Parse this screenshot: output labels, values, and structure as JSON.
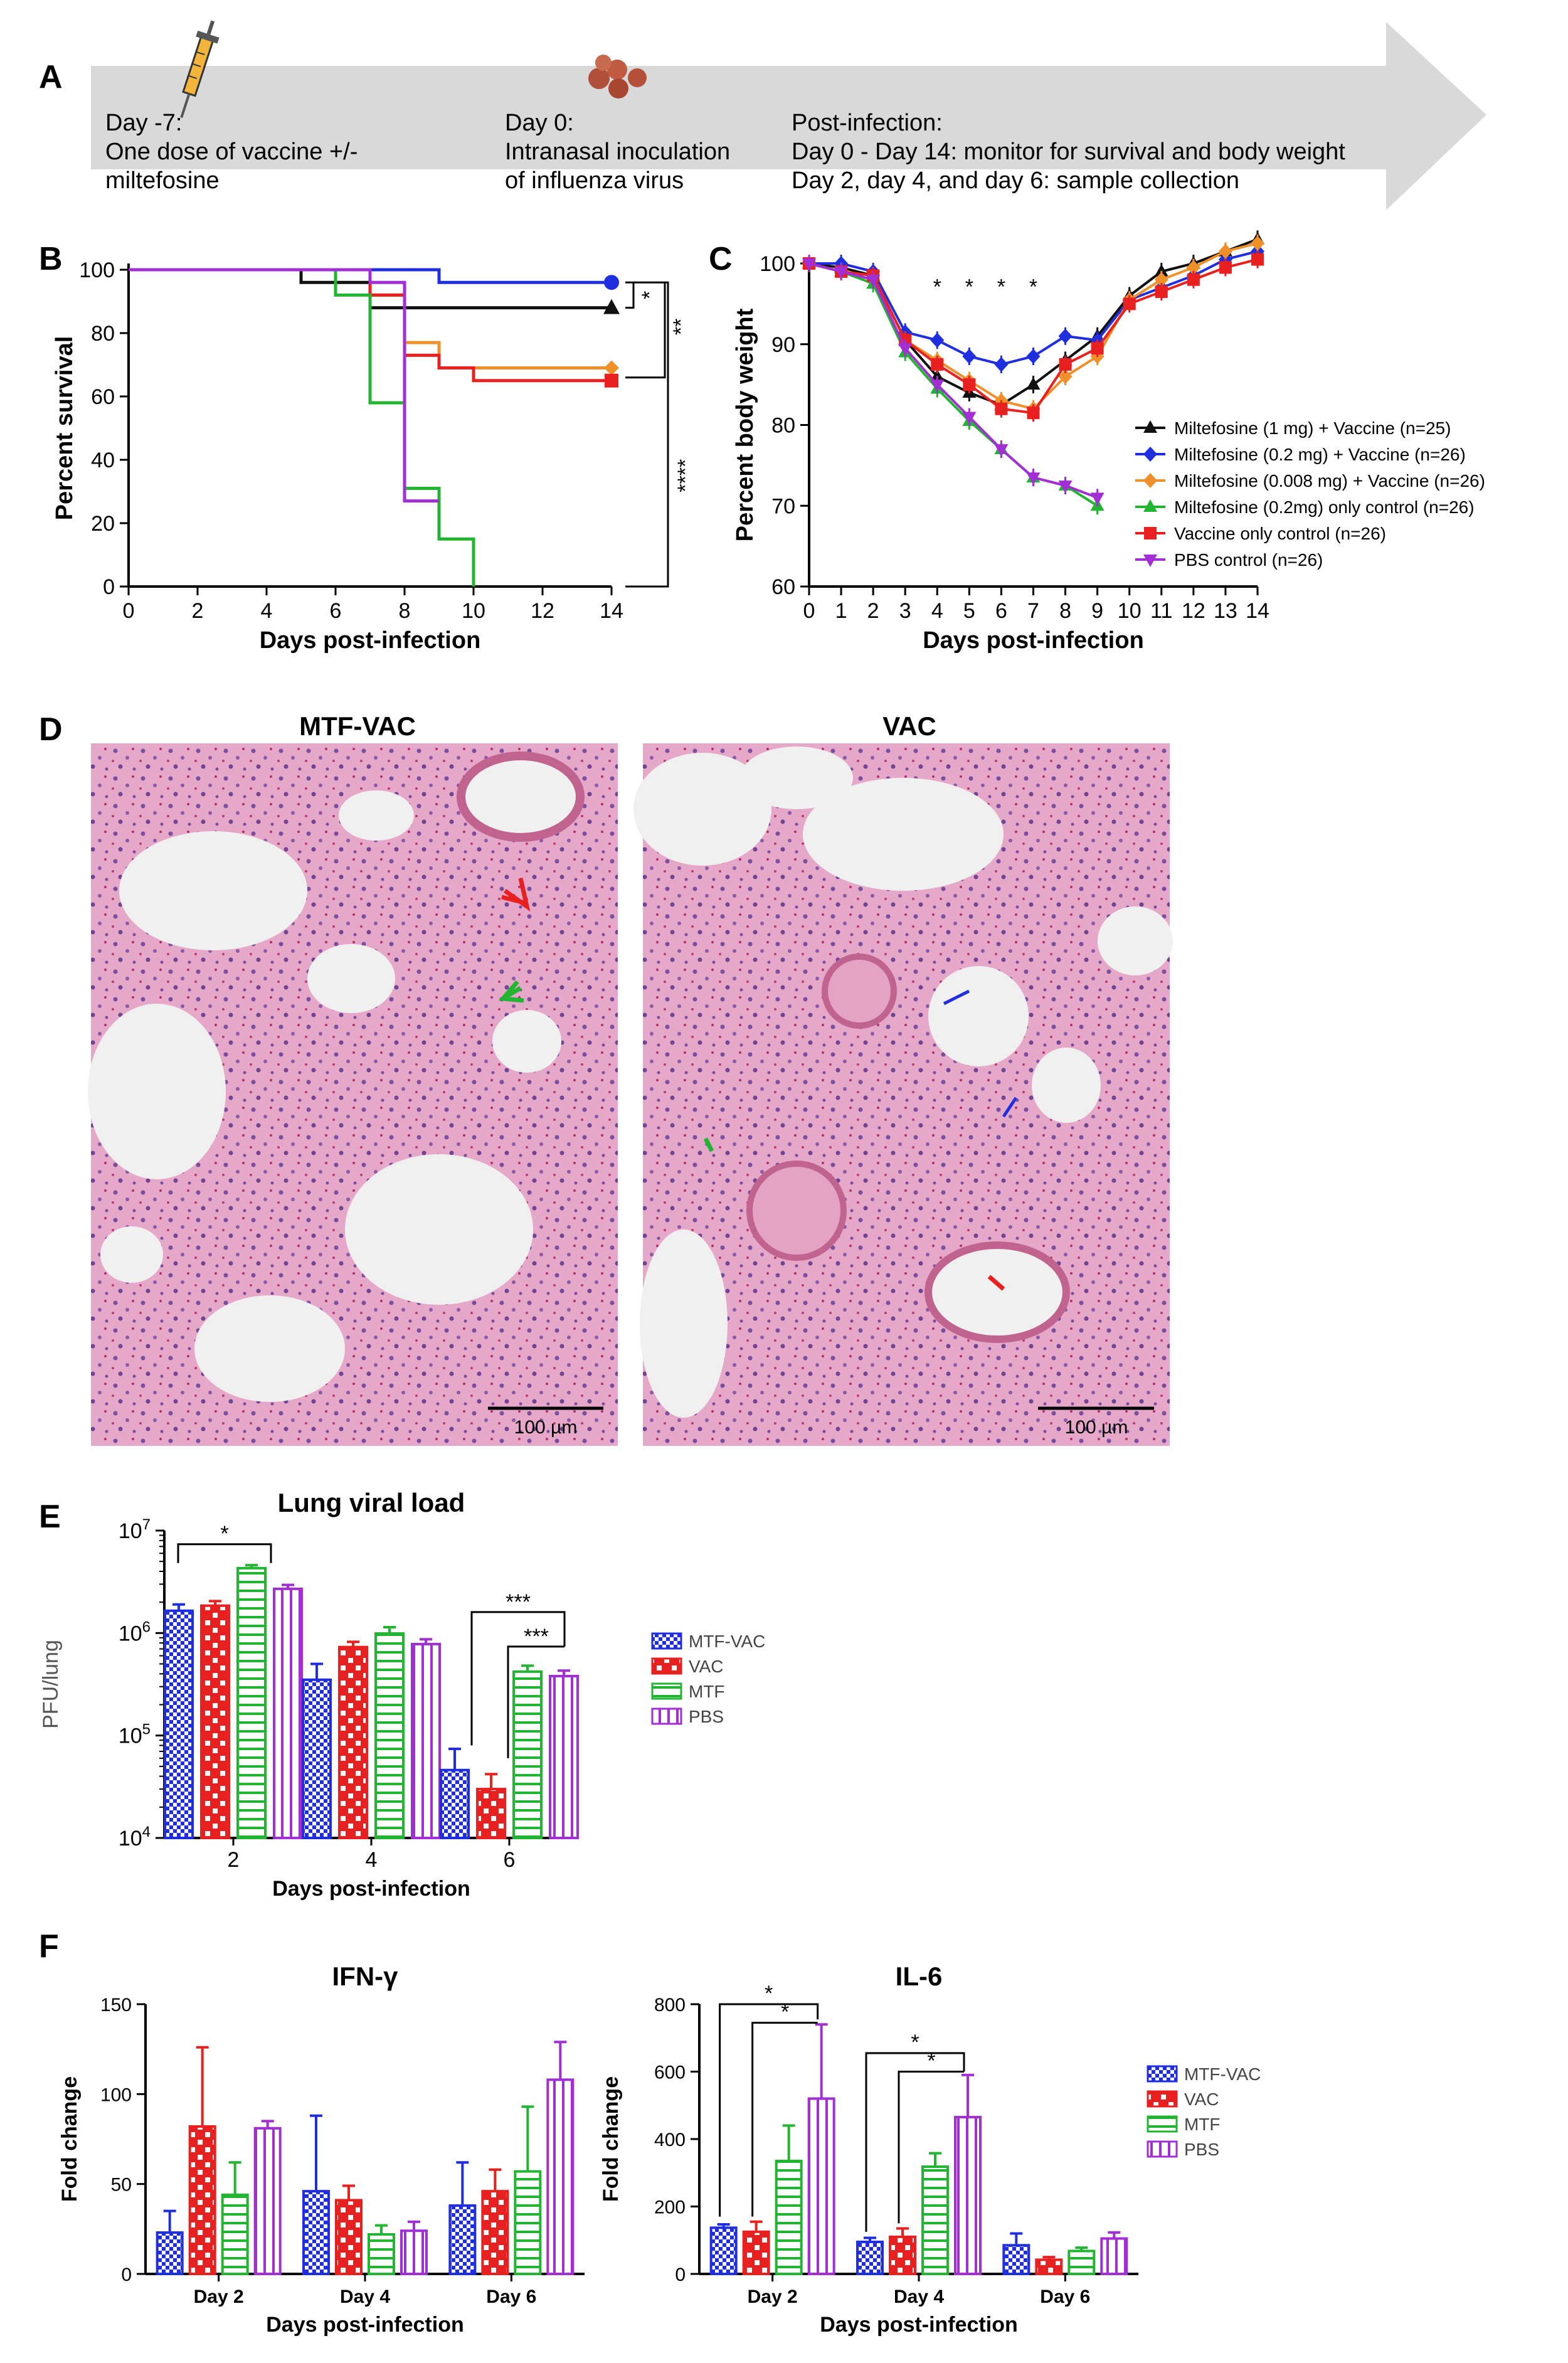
{
  "panels": {
    "A": "A",
    "B": "B",
    "C": "C",
    "D": "D",
    "E": "E",
    "F": "F"
  },
  "timeline": {
    "day_m7_title": "Day -7:",
    "day_m7_line1": "One dose of vaccine +/-",
    "day_m7_line2": "miltefosine",
    "day0_title": "Day 0:",
    "day0_line1": "Intranasal inoculation",
    "day0_line2": "of influenza virus",
    "post_title": "Post-infection:",
    "post_line1": "Day 0 - Day 14: monitor for survival and body weight",
    "post_line2": "Day 2, day 4, and day 6: sample collection"
  },
  "histology": {
    "left_title": "MTF-VAC",
    "right_title": "VAC",
    "scale_label": "100 µm"
  },
  "colors": {
    "black": "#111111",
    "blue": "#1f2fe0",
    "orange": "#f0902a",
    "green": "#22b531",
    "red": "#e8201f",
    "purple": "#a22fd3"
  },
  "chart_data": [
    {
      "panel": "B",
      "type": "line",
      "ylabel": "Percent survival",
      "xlabel": "Days post-infection",
      "xlim": [
        0,
        14
      ],
      "ylim": [
        0,
        100
      ],
      "xticks": [
        0,
        2,
        4,
        6,
        8,
        10,
        12,
        14
      ],
      "yticks": [
        0,
        20,
        40,
        60,
        80,
        100
      ],
      "series": [
        {
          "color": "#111111",
          "steps": [
            [
              0,
              100
            ],
            [
              5,
              100
            ],
            [
              5,
              96
            ],
            [
              7,
              96
            ],
            [
              7,
              88
            ],
            [
              14,
              88
            ]
          ]
        },
        {
          "color": "#1f2fe0",
          "steps": [
            [
              0,
              100
            ],
            [
              9,
              100
            ],
            [
              9,
              96
            ],
            [
              14,
              96
            ]
          ]
        },
        {
          "color": "#f0902a",
          "steps": [
            [
              0,
              100
            ],
            [
              7,
              100
            ],
            [
              7,
              92
            ],
            [
              8,
              92
            ],
            [
              8,
              77
            ],
            [
              9,
              77
            ],
            [
              9,
              69
            ],
            [
              14,
              69
            ]
          ]
        },
        {
          "color": "#e8201f",
          "steps": [
            [
              0,
              100
            ],
            [
              7,
              100
            ],
            [
              7,
              92
            ],
            [
              8,
              92
            ],
            [
              8,
              73
            ],
            [
              9,
              73
            ],
            [
              9,
              69
            ],
            [
              10,
              69
            ],
            [
              10,
              65
            ],
            [
              14,
              65
            ]
          ]
        },
        {
          "color": "#22b531",
          "steps": [
            [
              0,
              100
            ],
            [
              6,
              100
            ],
            [
              6,
              92
            ],
            [
              7,
              92
            ],
            [
              7,
              58
            ],
            [
              8,
              58
            ],
            [
              8,
              31
            ],
            [
              9,
              31
            ],
            [
              9,
              15
            ],
            [
              10,
              15
            ],
            [
              10,
              4
            ],
            [
              10,
              0
            ]
          ]
        },
        {
          "color": "#a22fd3",
          "steps": [
            [
              0,
              100
            ],
            [
              7,
              100
            ],
            [
              7,
              96
            ],
            [
              8,
              96
            ],
            [
              8,
              27
            ],
            [
              9,
              27
            ]
          ]
        }
      ],
      "significance": [
        "*",
        "**",
        "****"
      ]
    },
    {
      "panel": "C",
      "type": "line",
      "ylabel": "Percent body weight",
      "xlabel": "Days post-infection",
      "xlim": [
        0,
        14
      ],
      "ylim": [
        60,
        100
      ],
      "xticks": [
        0,
        1,
        2,
        3,
        4,
        5,
        6,
        7,
        8,
        9,
        10,
        11,
        12,
        13,
        14
      ],
      "yticks": [
        60,
        70,
        80,
        90,
        100
      ],
      "significance_days": [
        4,
        5,
        6,
        7
      ],
      "significance_label": "*",
      "series": [
        {
          "name": "Miltefosine (1 mg) + Vaccine (n=25)",
          "color": "#111111",
          "marker": "tri-up",
          "x": [
            0,
            1,
            2,
            3,
            4,
            5,
            6,
            7,
            8,
            9,
            10,
            11,
            12,
            13,
            14
          ],
          "y": [
            100,
            99.5,
            98.5,
            90.5,
            86,
            84,
            82.5,
            85,
            88,
            91,
            96,
            99,
            100,
            101.5,
            103
          ]
        },
        {
          "name": "Miltefosine (0.2 mg) + Vaccine (n=26)",
          "color": "#1f2fe0",
          "marker": "diamond",
          "x": [
            0,
            1,
            2,
            3,
            4,
            5,
            6,
            7,
            8,
            9,
            10,
            11,
            12,
            13,
            14
          ],
          "y": [
            100,
            100,
            99,
            91.5,
            90.5,
            88.5,
            87.5,
            88.5,
            91,
            90.5,
            95.5,
            97,
            98.5,
            100.5,
            101.5
          ]
        },
        {
          "name": "Miltefosine (0.008 mg) + Vaccine (n=26)",
          "color": "#f0902a",
          "marker": "diamond",
          "x": [
            0,
            1,
            2,
            3,
            4,
            5,
            6,
            7,
            8,
            9,
            10,
            11,
            12,
            13,
            14
          ],
          "y": [
            100,
            99,
            98.5,
            90.5,
            88,
            85.5,
            83,
            82,
            86,
            88.5,
            95.5,
            98,
            99.5,
            101.5,
            102.5
          ]
        },
        {
          "name": "Miltefosine (0.2mg) only control (n=26)",
          "color": "#22b531",
          "marker": "tri-up",
          "x": [
            0,
            1,
            2,
            3,
            4,
            5,
            6,
            7,
            8,
            9
          ],
          "y": [
            100,
            99,
            97.5,
            89,
            84.5,
            80.5,
            77,
            73.5,
            72.5,
            70
          ]
        },
        {
          "name": "Vaccine only control (n=26)",
          "color": "#e8201f",
          "marker": "square",
          "x": [
            0,
            1,
            2,
            3,
            4,
            5,
            6,
            7,
            8,
            9,
            10,
            11,
            12,
            13,
            14
          ],
          "y": [
            100,
            99,
            98.5,
            90.5,
            87.5,
            85,
            82,
            81.5,
            87.5,
            89.5,
            95,
            96.5,
            98,
            99.5,
            100.5
          ]
        },
        {
          "name": "PBS control (n=26)",
          "color": "#a22fd3",
          "marker": "tri-down",
          "x": [
            0,
            1,
            2,
            3,
            4,
            5,
            6,
            7,
            8,
            9
          ],
          "y": [
            100,
            99,
            98,
            89.5,
            85,
            81,
            77,
            73.5,
            72.5,
            71
          ]
        }
      ]
    },
    {
      "panel": "E",
      "type": "bar",
      "title": "Lung viral load",
      "ylabel": "PFU/lung",
      "xlabel": "Days post-infection",
      "yscale": "log",
      "ylim": [
        10000,
        10000000
      ],
      "categories": [
        "2",
        "4",
        "6"
      ],
      "series": [
        {
          "name": "MTF-VAC",
          "color": "#1f2fe0",
          "values": [
            1650000,
            350000,
            46000
          ],
          "errors": [
            250000,
            150000,
            28000
          ]
        },
        {
          "name": "VAC",
          "color": "#e8201f",
          "values": [
            1850000,
            730000,
            30000
          ],
          "errors": [
            200000,
            90000,
            12000
          ]
        },
        {
          "name": "MTF",
          "color": "#22b531",
          "values": [
            4300000,
            990000,
            420000
          ],
          "errors": [
            300000,
            150000,
            60000
          ]
        },
        {
          "name": "PBS",
          "color": "#a22fd3",
          "values": [
            2700000,
            780000,
            380000
          ],
          "errors": [
            250000,
            90000,
            50000
          ]
        }
      ],
      "significance": [
        "*",
        "***",
        "***"
      ]
    },
    {
      "panel": "F-left",
      "type": "bar",
      "title": "IFN-γ",
      "ylabel": "Fold change",
      "xlabel": "Days post-infection",
      "ylim": [
        0,
        150
      ],
      "yticks": [
        0,
        50,
        100,
        150
      ],
      "categories": [
        "Day 2",
        "Day 4",
        "Day 6"
      ],
      "series": [
        {
          "name": "MTF-VAC",
          "color": "#1f2fe0",
          "values": [
            23,
            46,
            38
          ],
          "errors": [
            12,
            42,
            24
          ]
        },
        {
          "name": "VAC",
          "color": "#e8201f",
          "values": [
            82,
            41,
            46
          ],
          "errors": [
            44,
            8,
            12
          ]
        },
        {
          "name": "MTF",
          "color": "#22b531",
          "values": [
            44,
            22,
            57
          ],
          "errors": [
            18,
            5,
            36
          ]
        },
        {
          "name": "PBS",
          "color": "#a22fd3",
          "values": [
            81,
            24,
            108
          ],
          "errors": [
            4,
            5,
            21
          ]
        }
      ]
    },
    {
      "panel": "F-right",
      "type": "bar",
      "title": "IL-6",
      "ylabel": "Fold change",
      "xlabel": "Days post-infection",
      "ylim": [
        0,
        800
      ],
      "yticks": [
        0,
        200,
        400,
        600,
        800
      ],
      "categories": [
        "Day 2",
        "Day 4",
        "Day 6"
      ],
      "series": [
        {
          "name": "MTF-VAC",
          "color": "#1f2fe0",
          "values": [
            137,
            95,
            85
          ],
          "errors": [
            10,
            12,
            35
          ]
        },
        {
          "name": "VAC",
          "color": "#e8201f",
          "values": [
            125,
            110,
            42
          ],
          "errors": [
            30,
            25,
            8
          ]
        },
        {
          "name": "MTF",
          "color": "#22b531",
          "values": [
            335,
            318,
            68
          ],
          "errors": [
            105,
            40,
            10
          ]
        },
        {
          "name": "PBS",
          "color": "#a22fd3",
          "values": [
            520,
            465,
            105
          ],
          "errors": [
            220,
            125,
            18
          ]
        }
      ],
      "significance": [
        "*",
        "*",
        "*",
        "*"
      ]
    }
  ]
}
